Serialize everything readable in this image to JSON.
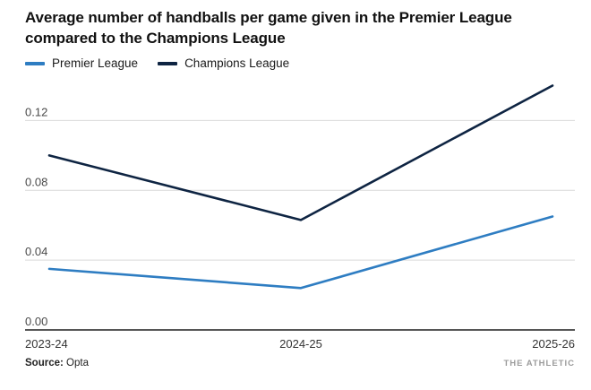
{
  "title": "Average number of handballs per game given in the Premier League compared to the Champions League",
  "legend": {
    "items": [
      {
        "label": "Premier League",
        "color": "#2e7dc2"
      },
      {
        "label": "Champions League",
        "color": "#0e2442"
      }
    ]
  },
  "source": {
    "label": "Source:",
    "value": "Opta"
  },
  "brand": "THE ATHLETIC",
  "colors": {
    "grid": "#d9d9d9",
    "axis": "#1f1f1f",
    "ytick_text": "#4a4a4a",
    "xtick_text": "#333333"
  },
  "chart_data": {
    "type": "line",
    "categories": [
      "2023-24",
      "2024-25",
      "2025-26"
    ],
    "series": [
      {
        "name": "Premier League",
        "color": "#2e7dc2",
        "values": [
          0.035,
          0.024,
          0.065
        ]
      },
      {
        "name": "Champions League",
        "color": "#0e2442",
        "values": [
          0.1,
          0.063,
          0.14
        ]
      }
    ],
    "yticks": [
      0,
      0.04,
      0.08,
      0.12
    ],
    "ylim": [
      0,
      0.15
    ],
    "xlabel": "",
    "ylabel": "",
    "grid": "horizontal",
    "legend_position": "top-left"
  }
}
